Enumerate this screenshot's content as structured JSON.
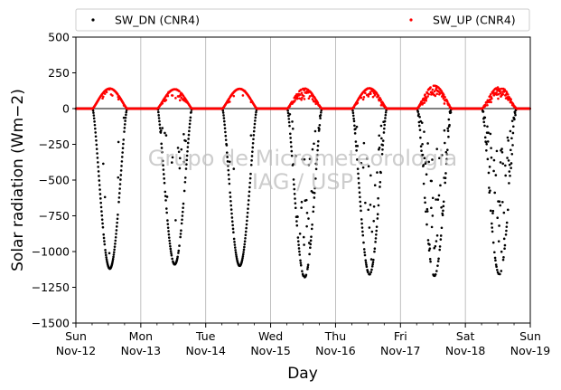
{
  "chart_data": {
    "type": "scatter",
    "xlabel": "Day",
    "ylabel": "Solar radiation (Wm−2)",
    "ylim": [
      -1500,
      500
    ],
    "yticks": [
      500,
      250,
      0,
      -250,
      -500,
      -750,
      -1000,
      -1250,
      -1500
    ],
    "ytick_labels": [
      "500",
      "250",
      "0",
      "−250",
      "−500",
      "−750",
      "−1000",
      "−1250",
      "−1500"
    ],
    "xlim": [
      "2017-11-12",
      "2017-11-19"
    ],
    "xticks": [
      {
        "date": "2017-11-12",
        "weekday": "Sun",
        "label": "Nov-12"
      },
      {
        "date": "2017-11-13",
        "weekday": "Mon",
        "label": "Nov-13"
      },
      {
        "date": "2017-11-14",
        "weekday": "Tue",
        "label": "Nov-14"
      },
      {
        "date": "2017-11-15",
        "weekday": "Wed",
        "label": "Nov-15"
      },
      {
        "date": "2017-11-16",
        "weekday": "Thu",
        "label": "Nov-16"
      },
      {
        "date": "2017-11-17",
        "weekday": "Fri",
        "label": "Nov-17"
      },
      {
        "date": "2017-11-18",
        "weekday": "Sat",
        "label": "Nov-18"
      },
      {
        "date": "2017-11-19",
        "weekday": "Sun",
        "label": "Nov-19"
      }
    ],
    "grid": "vertical",
    "legend_position": "top",
    "watermark": [
      "Grupo de Micrometeorologia",
      "IAG / USP"
    ],
    "series": [
      {
        "name": "SW_DN (CNR4)",
        "color": "#000000",
        "daily_minimum": [
          {
            "date": "2017-11-12",
            "min": -1120
          },
          {
            "date": "2017-11-13",
            "min": -1090
          },
          {
            "date": "2017-11-14",
            "min": -1100
          },
          {
            "date": "2017-11-15",
            "min": -1180
          },
          {
            "date": "2017-11-16",
            "min": -1160
          },
          {
            "date": "2017-11-17",
            "min": -1170
          },
          {
            "date": "2017-11-18",
            "min": -1160
          }
        ]
      },
      {
        "name": "SW_UP (CNR4)",
        "color": "#ff0000",
        "daily_maximum": [
          {
            "date": "2017-11-12",
            "max": 140
          },
          {
            "date": "2017-11-13",
            "max": 135
          },
          {
            "date": "2017-11-14",
            "max": 138
          },
          {
            "date": "2017-11-15",
            "max": 140
          },
          {
            "date": "2017-11-16",
            "max": 142
          },
          {
            "date": "2017-11-17",
            "max": 160
          },
          {
            "date": "2017-11-18",
            "max": 150
          }
        ]
      }
    ]
  }
}
